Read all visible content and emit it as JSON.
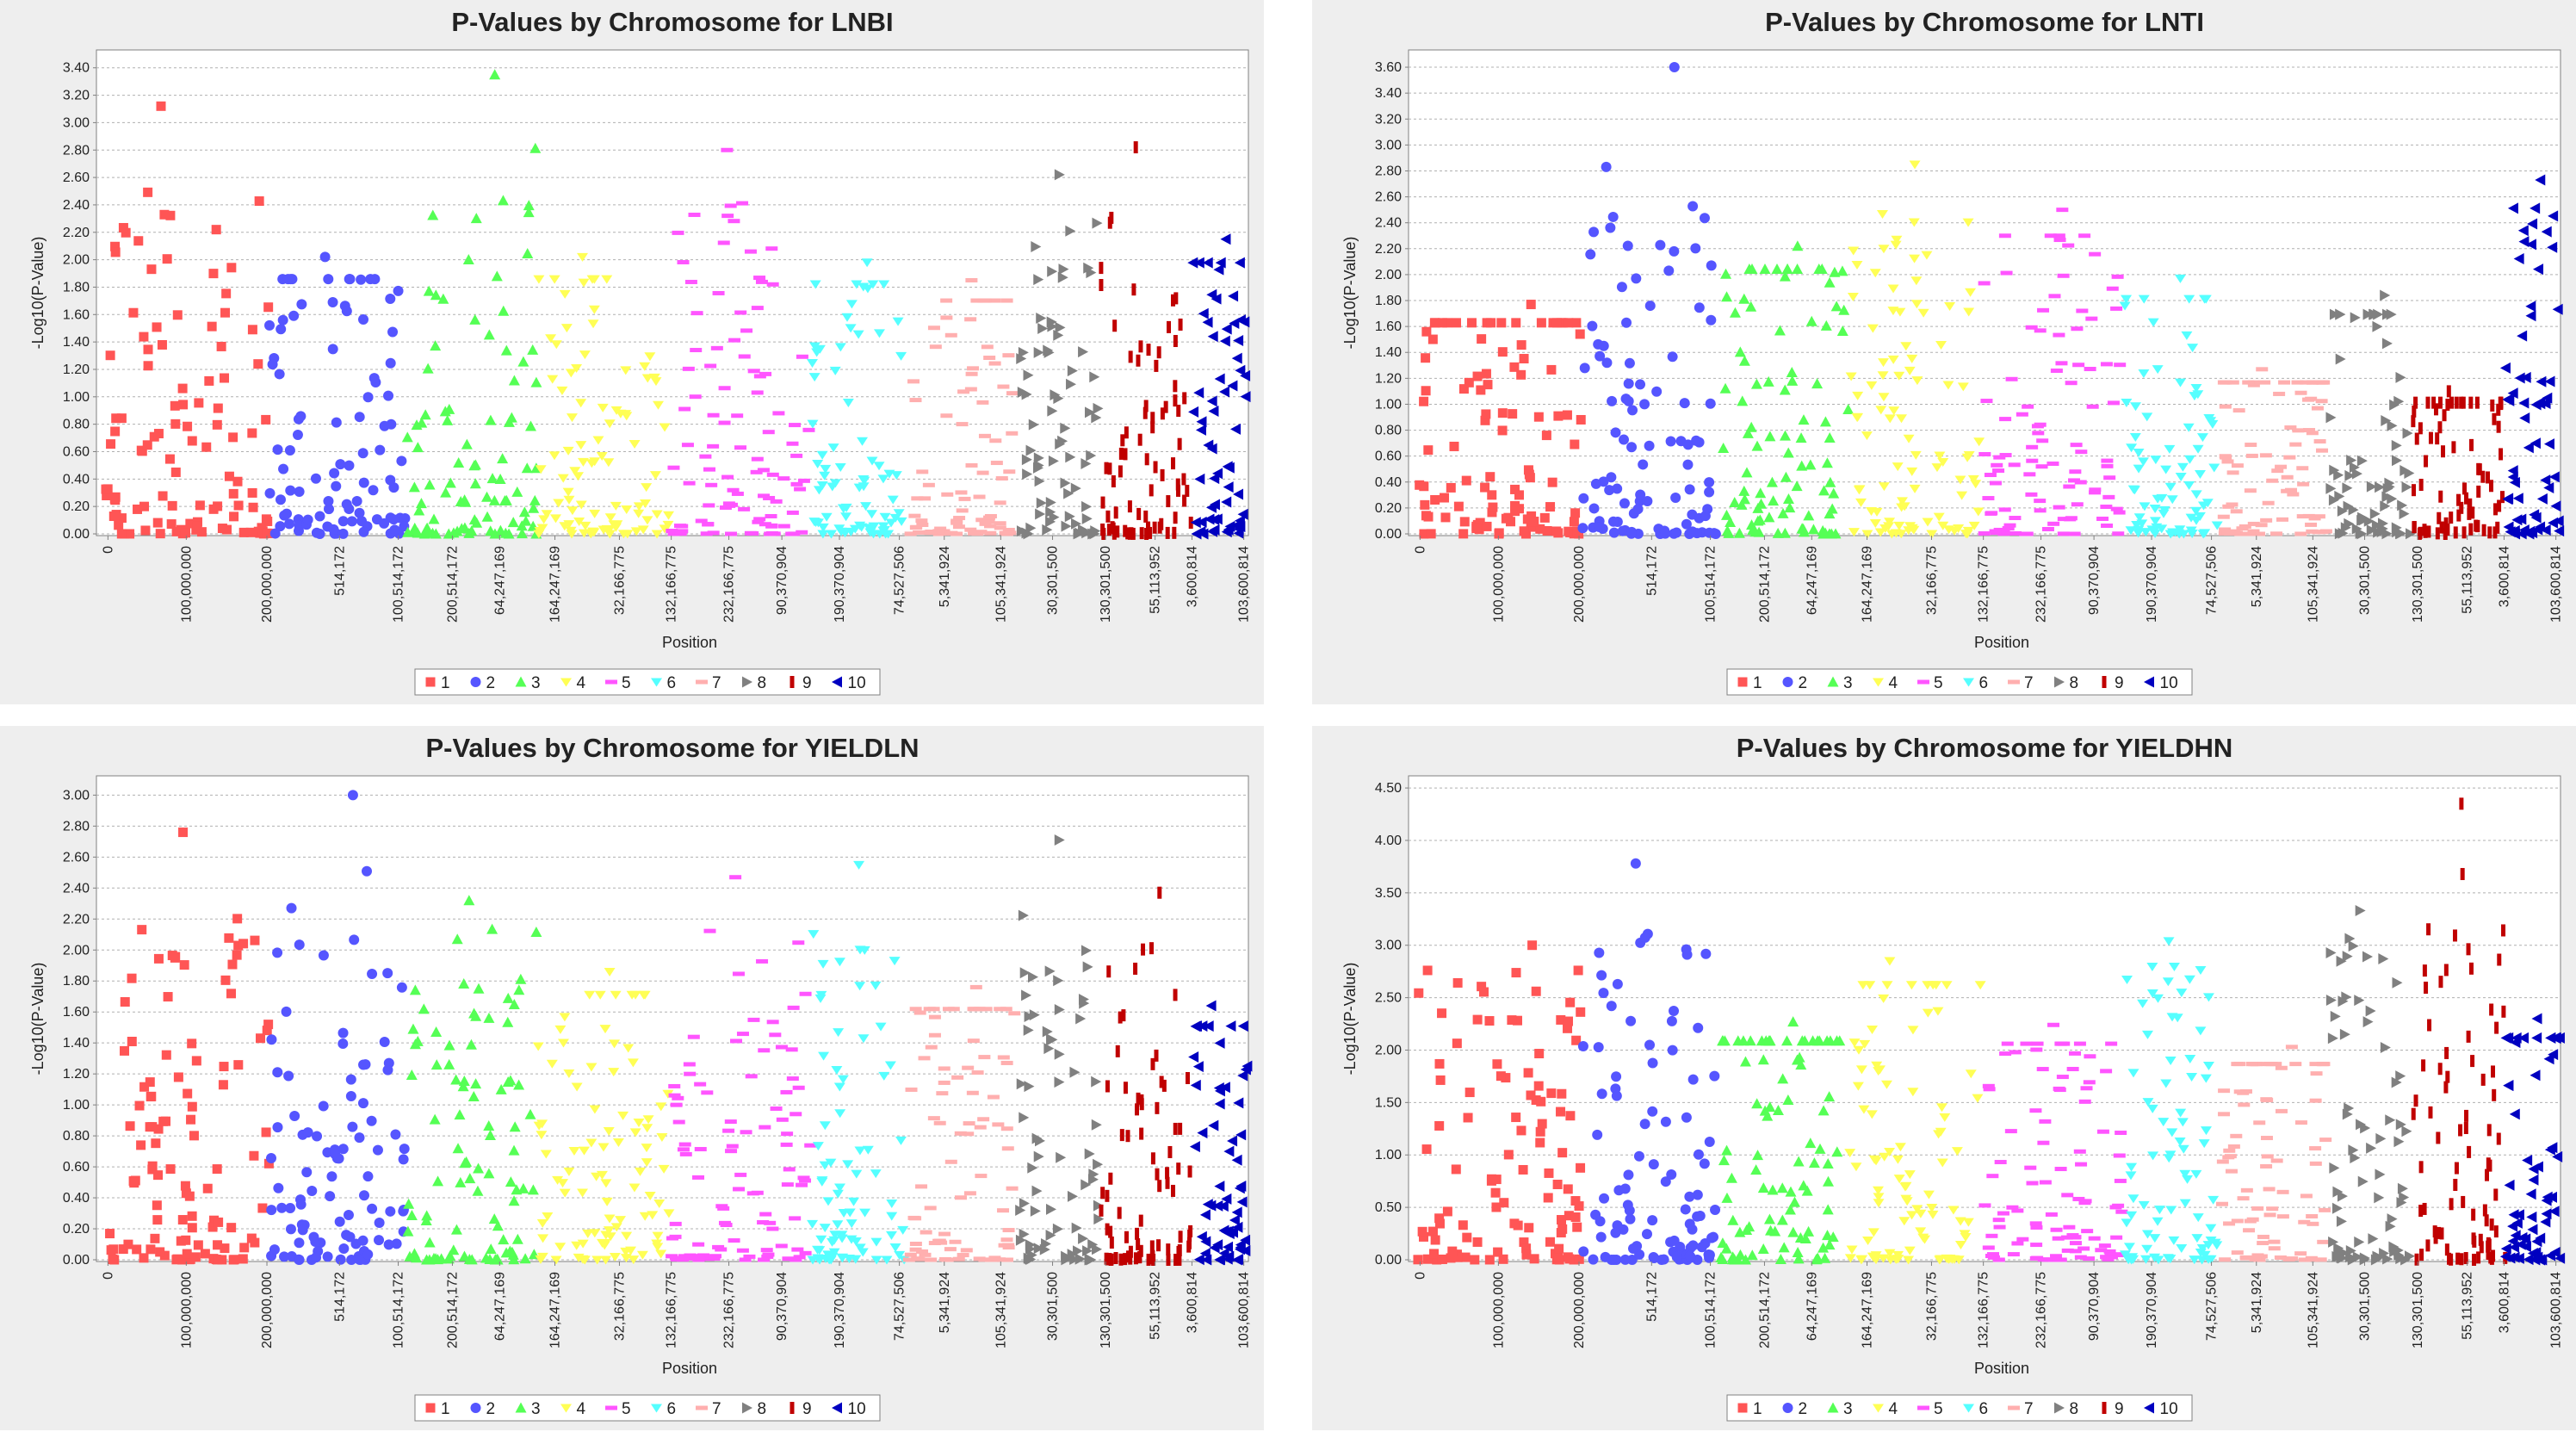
{
  "colors": {
    "1": "#ff5555",
    "2": "#5555ff",
    "3": "#55ff55",
    "4": "#ffff55",
    "5": "#ff55ff",
    "6": "#55ffff",
    "7": "#ffafaf",
    "8": "#808080",
    "9": "#c00000",
    "10": "#0000c0"
  },
  "legend": [
    "1",
    "2",
    "3",
    "4",
    "5",
    "6",
    "7",
    "8",
    "9",
    "10"
  ],
  "x_tick_labels": [
    "0",
    "100,000,000",
    "200,000,000",
    "514,172",
    "100,514,172",
    "200,514,172",
    "64,247,169",
    "164,247,169",
    "32,166,775",
    "132,166,775",
    "232,166,775",
    "90,370,904",
    "190,370,904",
    "74,527,506",
    "5,341,924",
    "105,341,924",
    "30,301,500",
    "130,301,500",
    "55,113,952",
    "3,600,814",
    "103,600,814"
  ],
  "chart_data": [
    {
      "type": "scatter",
      "title": "P-Values by Chromosome for LNBI",
      "xlabel": "Position",
      "ylabel": "-Log10(P-Value)",
      "ylim": [
        0,
        3.48
      ],
      "yticks": [
        "0.00",
        "0.20",
        "0.40",
        "0.60",
        "0.80",
        "1.00",
        "1.20",
        "1.40",
        "1.60",
        "1.80",
        "2.00",
        "2.20",
        "2.40",
        "2.60",
        "2.80",
        "3.00",
        "3.20",
        "3.40"
      ],
      "grid": true,
      "legend_position": "bottom-center",
      "chromosome_peaks": [
        3.12,
        2.02,
        3.35,
        2.02,
        2.8,
        1.98,
        1.85,
        2.62,
        2.82,
        2.15
      ]
    },
    {
      "type": "scatter",
      "title": "P-Values by Chromosome for LNTI",
      "xlabel": "Position",
      "ylabel": "-Log10(P-Value)",
      "ylim": [
        0,
        3.68
      ],
      "yticks": [
        "0.00",
        "0.20",
        "0.40",
        "0.60",
        "0.80",
        "1.00",
        "1.20",
        "1.40",
        "1.60",
        "1.80",
        "2.00",
        "2.20",
        "2.40",
        "2.60",
        "2.80",
        "3.00",
        "3.20",
        "3.40",
        "3.60"
      ],
      "grid": true,
      "legend_position": "bottom-center",
      "chromosome_peaks": [
        1.77,
        3.6,
        2.22,
        2.85,
        2.5,
        1.97,
        1.27,
        1.84,
        1.1,
        2.73
      ]
    },
    {
      "type": "scatter",
      "title": "P-Values by Chromosome for YIELDLN",
      "xlabel": "Position",
      "ylabel": "-Log10(P-Value)",
      "ylim": [
        0,
        3.08
      ],
      "yticks": [
        "0.00",
        "0.20",
        "0.40",
        "0.60",
        "0.80",
        "1.00",
        "1.20",
        "1.40",
        "1.60",
        "1.80",
        "2.00",
        "2.20",
        "2.40",
        "2.60",
        "2.80",
        "3.00"
      ],
      "grid": true,
      "legend_position": "bottom-center",
      "chromosome_peaks": [
        2.76,
        3.0,
        2.32,
        1.86,
        2.47,
        2.55,
        1.76,
        2.71,
        2.37,
        1.64
      ]
    },
    {
      "type": "scatter",
      "title": "P-Values by Chromosome for YIELDHN",
      "xlabel": "Position",
      "ylabel": "-Log10(P-Value)",
      "ylim": [
        0,
        4.55
      ],
      "yticks": [
        "0.00",
        "0.50",
        "1.00",
        "1.50",
        "2.00",
        "2.50",
        "3.00",
        "3.50",
        "4.00",
        "4.50"
      ],
      "grid": true,
      "legend_position": "bottom-center",
      "chromosome_peaks": [
        3.0,
        3.78,
        2.27,
        2.85,
        2.24,
        3.04,
        2.03,
        3.33,
        4.35,
        2.3
      ]
    }
  ]
}
